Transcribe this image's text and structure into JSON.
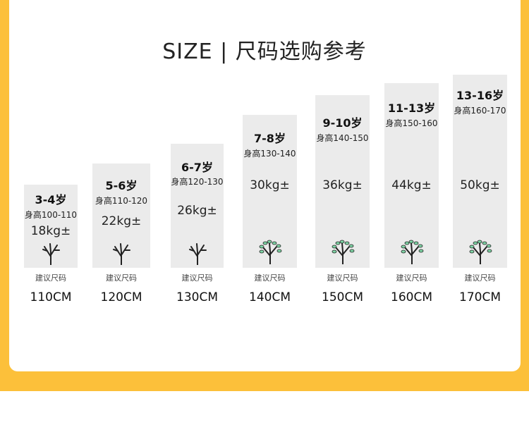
{
  "title": "SIZE | 尺码选购参考",
  "recommend_label": "建议尺码",
  "columns": [
    {
      "age": "3-4岁",
      "height": "身高100-110",
      "weight": "18kg±",
      "size": "110CM",
      "tree": "bare"
    },
    {
      "age": "5-6岁",
      "height": "身高110-120",
      "weight": "22kg±",
      "size": "120CM",
      "tree": "bare"
    },
    {
      "age": "6-7岁",
      "height": "身高120-130",
      "weight": "26kg±",
      "size": "130CM",
      "tree": "bare"
    },
    {
      "age": "7-8岁",
      "height": "身高130-140",
      "weight": "30kg±",
      "size": "140CM",
      "tree": "leafy"
    },
    {
      "age": "9-10岁",
      "height": "身高140-150",
      "weight": "36kg±",
      "size": "150CM",
      "tree": "leafy"
    },
    {
      "age": "11-13岁",
      "height": "身高150-160",
      "weight": "44kg±",
      "size": "160CM",
      "tree": "leafy"
    },
    {
      "age": "13-16岁",
      "height": "身高160-170",
      "weight": "50kg±",
      "size": "170CM",
      "tree": "leafy"
    }
  ],
  "colors": {
    "frame": "#fcc03a",
    "box": "#ebebeb",
    "leaf": "#7fd6a6"
  }
}
